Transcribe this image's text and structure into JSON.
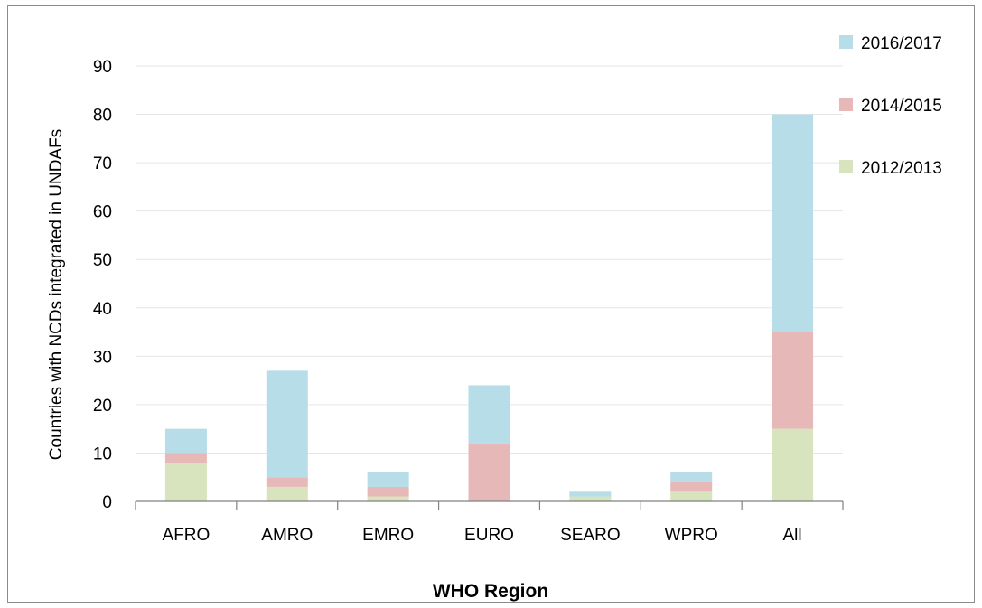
{
  "chart_data": {
    "type": "bar",
    "stacked": true,
    "title": "",
    "xlabel": "WHO Region",
    "ylabel": "Countries with NCDs integrated in UNDAFs",
    "ylim": [
      0,
      90
    ],
    "yticks": [
      0,
      10,
      20,
      30,
      40,
      50,
      60,
      70,
      80,
      90
    ],
    "grid": true,
    "legend_position": "top-right",
    "categories": [
      "AFRO",
      "AMRO",
      "EMRO",
      "EURO",
      "SEARO",
      "WPRO",
      "All"
    ],
    "series": [
      {
        "name": "2012/2013",
        "color": "#d7e4bd",
        "values": [
          8,
          3,
          1,
          0,
          1,
          2,
          15
        ]
      },
      {
        "name": "2014/2015",
        "color": "#e6b9b8",
        "values": [
          2,
          2,
          2,
          12,
          0,
          2,
          20
        ]
      },
      {
        "name": "2016/2017",
        "color": "#b7dde8",
        "values": [
          5,
          22,
          3,
          12,
          1,
          2,
          45
        ]
      }
    ],
    "legend_order": [
      "2016/2017",
      "2014/2015",
      "2012/2013"
    ]
  }
}
